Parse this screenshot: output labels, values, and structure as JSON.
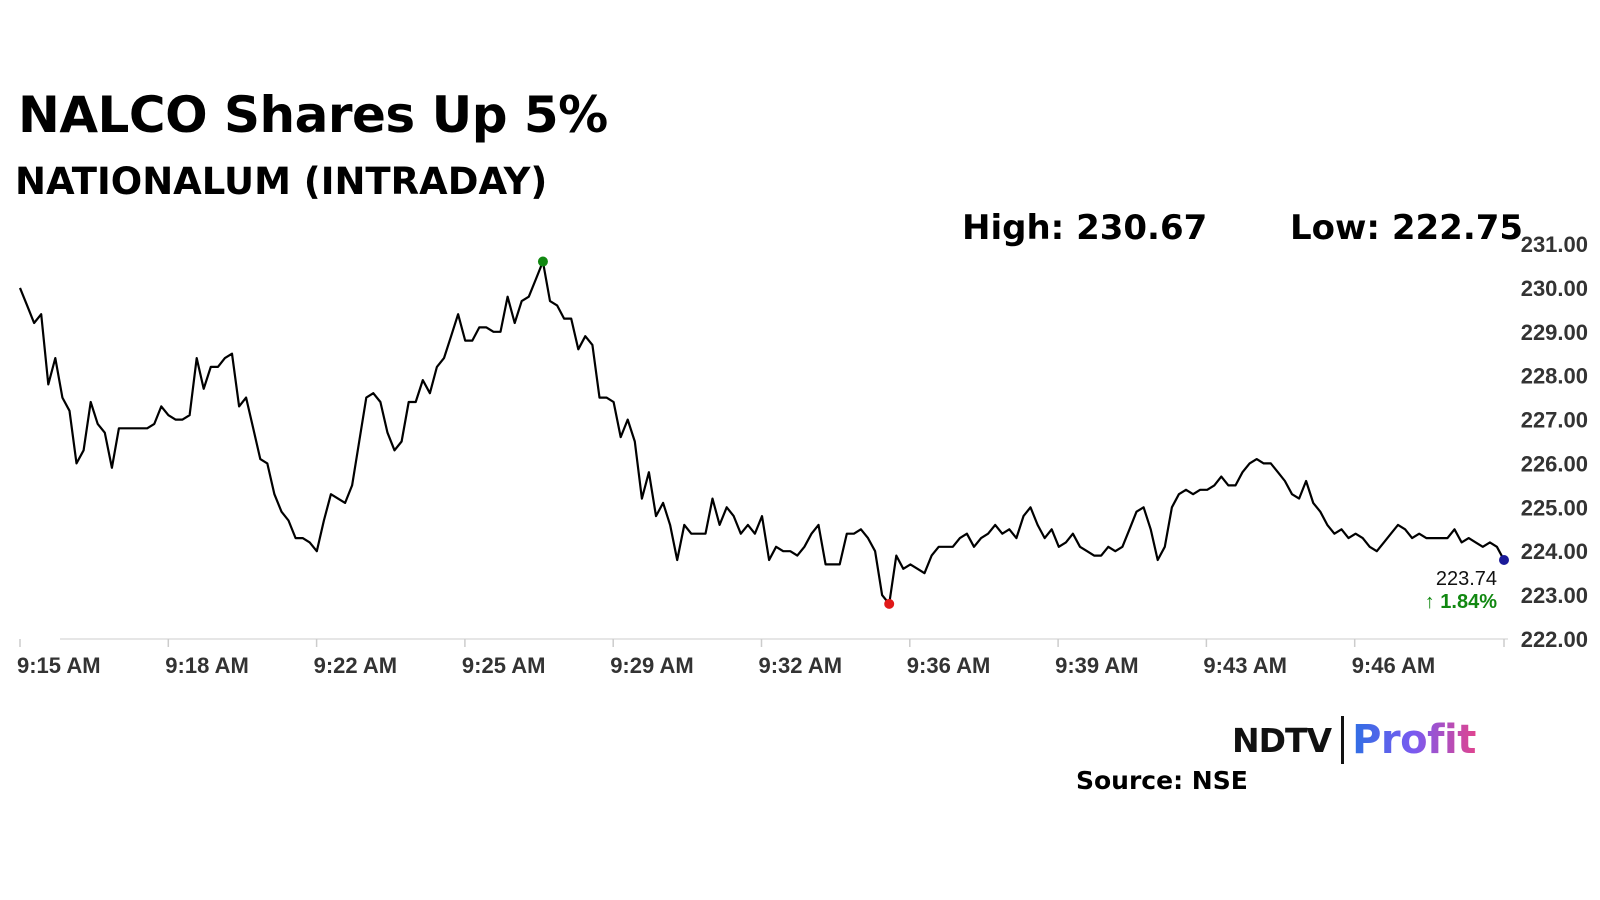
{
  "header": {
    "title": "NALCO Shares Up 5%",
    "subtitle": "NATIONALUM (INTRADAY)",
    "high": "High: 230.67",
    "low": "Low: 222.75"
  },
  "footer": {
    "brand_left": "NDTV",
    "brand_right": "Profit",
    "source": "Source: NSE"
  },
  "chart_data": {
    "type": "line",
    "ylim": [
      222,
      231
    ],
    "y_ticks": [
      "231.00",
      "230.00",
      "229.00",
      "228.00",
      "227.00",
      "226.00",
      "225.00",
      "224.00",
      "223.00",
      "222.00"
    ],
    "x_tick_labels": [
      "9:15 AM",
      "9:18 AM",
      "9:22 AM",
      "9:25 AM",
      "9:29 AM",
      "9:32 AM",
      "9:36 AM",
      "9:39 AM",
      "9:43 AM",
      "9:46 AM"
    ],
    "series": [
      {
        "values": [
          230.0,
          229.6,
          229.2,
          229.4,
          227.8,
          228.4,
          227.5,
          227.2,
          226.0,
          226.3,
          227.4,
          226.9,
          226.7,
          225.9,
          226.8,
          226.8,
          226.8,
          226.8,
          226.8,
          226.9,
          227.3,
          227.1,
          227.0,
          227.0,
          227.1,
          228.4,
          227.7,
          228.2,
          228.2,
          228.4,
          228.5,
          227.3,
          227.5,
          226.8,
          226.1,
          226.0,
          225.3,
          224.9,
          224.7,
          224.3,
          224.3,
          224.2,
          224.0,
          224.7,
          225.3,
          225.2,
          225.1,
          225.5,
          226.5,
          227.5,
          227.6,
          227.4,
          226.7,
          226.3,
          226.5,
          227.4,
          227.4,
          227.9,
          227.6,
          228.2,
          228.4,
          228.9,
          229.4,
          228.8,
          228.8,
          229.1,
          229.1,
          229.0,
          229.0,
          229.8,
          229.2,
          229.7,
          229.8,
          230.2,
          230.6,
          229.7,
          229.6,
          229.3,
          229.3,
          228.6,
          228.9,
          228.7,
          227.5,
          227.5,
          227.4,
          226.6,
          227.0,
          226.5,
          225.2,
          225.8,
          224.8,
          225.1,
          224.6,
          223.8,
          224.6,
          224.4,
          224.4,
          224.4,
          225.2,
          224.6,
          225.0,
          224.8,
          224.4,
          224.6,
          224.4,
          224.8,
          223.8,
          224.1,
          224.0,
          224.0,
          223.9,
          224.1,
          224.4,
          224.6,
          223.7,
          223.7,
          223.7,
          224.4,
          224.4,
          224.5,
          224.3,
          224.0,
          223.0,
          222.8,
          223.9,
          223.6,
          223.7,
          223.6,
          223.5,
          223.9,
          224.1,
          224.1,
          224.1,
          224.3,
          224.4,
          224.1,
          224.3,
          224.4,
          224.6,
          224.4,
          224.5,
          224.3,
          224.8,
          225.0,
          224.6,
          224.3,
          224.5,
          224.1,
          224.2,
          224.4,
          224.1,
          224.0,
          223.9,
          223.9,
          224.1,
          224.0,
          224.1,
          224.5,
          224.9,
          225.0,
          224.5,
          223.8,
          224.1,
          225.0,
          225.3,
          225.4,
          225.3,
          225.4,
          225.4,
          225.5,
          225.7,
          225.5,
          225.5,
          225.8,
          226.0,
          226.1,
          226.0,
          226.0,
          225.8,
          225.6,
          225.3,
          225.2,
          225.6,
          225.1,
          224.9,
          224.6,
          224.4,
          224.5,
          224.3,
          224.4,
          224.3,
          224.1,
          224.0,
          224.2,
          224.4,
          224.6,
          224.5,
          224.3,
          224.4,
          224.3,
          224.3,
          224.3,
          224.3,
          224.5,
          224.2,
          224.3,
          224.2,
          224.1,
          224.2,
          224.1,
          223.8
        ]
      }
    ],
    "high_index": 74,
    "low_index": 123,
    "last_price": "223.74",
    "change": "↑ 1.84%",
    "colors": {
      "line": "#000000",
      "high_marker": "#118811",
      "low_marker": "#e01818",
      "last_marker": "#1a1a99",
      "change_text": "#118811",
      "axis_text": "#333333",
      "axis_line": "#dddddd"
    }
  }
}
